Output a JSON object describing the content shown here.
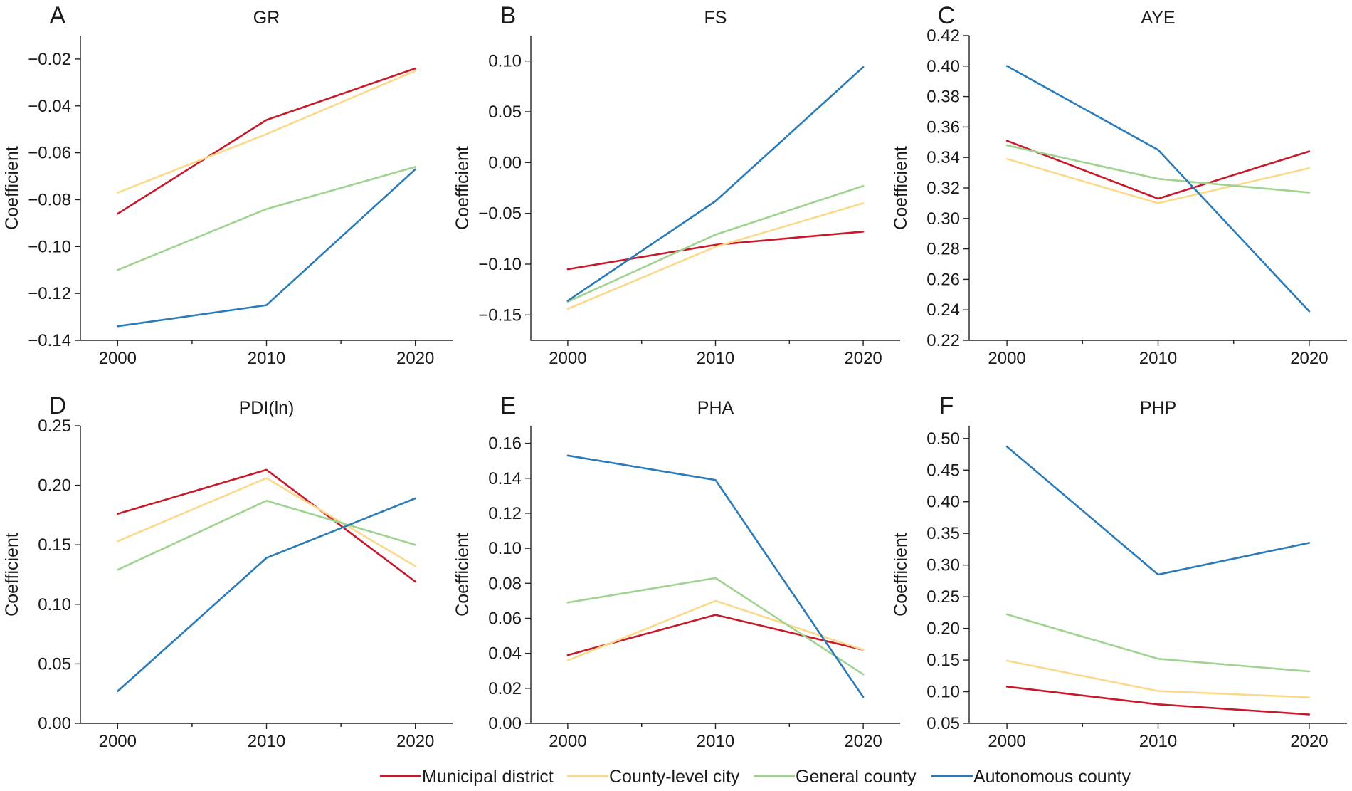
{
  "chart_data": [
    {
      "type": "line",
      "letter": "A",
      "title": "GR",
      "ylabel": "Coefficient",
      "categories": [
        "2000",
        "2010",
        "2020"
      ],
      "ylim": [
        -0.14,
        -0.01
      ],
      "yticks": [
        -0.14,
        -0.12,
        -0.1,
        -0.08,
        -0.06,
        -0.04,
        -0.02
      ],
      "ytick_labels": [
        "−0.14",
        "−0.12",
        "−0.10",
        "−0.08",
        "−0.06",
        "−0.04",
        "−0.02"
      ],
      "series": [
        {
          "name": "Municipal district",
          "values": [
            -0.086,
            -0.046,
            -0.024
          ]
        },
        {
          "name": "County-level city",
          "values": [
            -0.077,
            -0.052,
            -0.025
          ]
        },
        {
          "name": "General county",
          "values": [
            -0.11,
            -0.084,
            -0.066
          ]
        },
        {
          "name": "Autonomous county",
          "values": [
            -0.134,
            -0.125,
            -0.067
          ]
        }
      ]
    },
    {
      "type": "line",
      "letter": "B",
      "title": "FS",
      "ylabel": "Coefficient",
      "categories": [
        "2000",
        "2010",
        "2020"
      ],
      "ylim": [
        -0.175,
        0.125
      ],
      "yticks": [
        -0.15,
        -0.1,
        -0.05,
        0.0,
        0.05,
        0.1
      ],
      "ytick_labels": [
        "−0.15",
        "−0.10",
        "−0.05",
        "0.00",
        "0.05",
        "0.10"
      ],
      "series": [
        {
          "name": "Municipal district",
          "values": [
            -0.105,
            -0.081,
            -0.068
          ]
        },
        {
          "name": "County-level city",
          "values": [
            -0.144,
            -0.083,
            -0.04
          ]
        },
        {
          "name": "General county",
          "values": [
            -0.137,
            -0.071,
            -0.023
          ]
        },
        {
          "name": "Autonomous county",
          "values": [
            -0.136,
            -0.038,
            0.094
          ]
        }
      ]
    },
    {
      "type": "line",
      "letter": "C",
      "title": "AYE",
      "ylabel": "Coefficient",
      "categories": [
        "2000",
        "2010",
        "2020"
      ],
      "ylim": [
        0.22,
        0.42
      ],
      "yticks": [
        0.22,
        0.24,
        0.26,
        0.28,
        0.3,
        0.32,
        0.34,
        0.36,
        0.38,
        0.4,
        0.42
      ],
      "ytick_labels": [
        "0.22",
        "0.24",
        "0.26",
        "0.28",
        "0.30",
        "0.32",
        "0.34",
        "0.36",
        "0.38",
        "0.40",
        "0.42"
      ],
      "series": [
        {
          "name": "Municipal district",
          "values": [
            0.351,
            0.313,
            0.344
          ]
        },
        {
          "name": "County-level city",
          "values": [
            0.339,
            0.31,
            0.333
          ]
        },
        {
          "name": "General county",
          "values": [
            0.348,
            0.326,
            0.317
          ]
        },
        {
          "name": "Autonomous county",
          "values": [
            0.4,
            0.345,
            0.239
          ]
        }
      ]
    },
    {
      "type": "line",
      "letter": "D",
      "title": "PDI(ln)",
      "ylabel": "Coefficient",
      "categories": [
        "2000",
        "2010",
        "2020"
      ],
      "ylim": [
        0.0,
        0.25
      ],
      "yticks": [
        0.0,
        0.05,
        0.1,
        0.15,
        0.2,
        0.25
      ],
      "ytick_labels": [
        "0.00",
        "0.05",
        "0.10",
        "0.15",
        "0.20",
        "0.25"
      ],
      "series": [
        {
          "name": "Municipal district",
          "values": [
            0.176,
            0.213,
            0.119
          ]
        },
        {
          "name": "County-level city",
          "values": [
            0.153,
            0.206,
            0.132
          ]
        },
        {
          "name": "General county",
          "values": [
            0.129,
            0.187,
            0.15
          ]
        },
        {
          "name": "Autonomous county",
          "values": [
            0.027,
            0.139,
            0.189
          ]
        }
      ]
    },
    {
      "type": "line",
      "letter": "E",
      "title": "PHA",
      "ylabel": "Coefficient",
      "categories": [
        "2000",
        "2010",
        "2020"
      ],
      "ylim": [
        0.0,
        0.17
      ],
      "yticks": [
        0.0,
        0.02,
        0.04,
        0.06,
        0.08,
        0.1,
        0.12,
        0.14,
        0.16
      ],
      "ytick_labels": [
        "0.00",
        "0.02",
        "0.04",
        "0.06",
        "0.08",
        "0.10",
        "0.12",
        "0.14",
        "0.16"
      ],
      "series": [
        {
          "name": "Municipal district",
          "values": [
            0.039,
            0.062,
            0.042
          ]
        },
        {
          "name": "County-level city",
          "values": [
            0.036,
            0.07,
            0.042
          ]
        },
        {
          "name": "General county",
          "values": [
            0.069,
            0.083,
            0.028
          ]
        },
        {
          "name": "Autonomous county",
          "values": [
            0.153,
            0.139,
            0.015
          ]
        }
      ]
    },
    {
      "type": "line",
      "letter": "F",
      "title": "PHP",
      "ylabel": "Coefficient",
      "categories": [
        "2000",
        "2010",
        "2020"
      ],
      "ylim": [
        0.05,
        0.52
      ],
      "yticks": [
        0.05,
        0.1,
        0.15,
        0.2,
        0.25,
        0.3,
        0.35,
        0.4,
        0.45,
        0.5
      ],
      "ytick_labels": [
        "0.05",
        "0.10",
        "0.15",
        "0.20",
        "0.25",
        "0.30",
        "0.35",
        "0.40",
        "0.45",
        "0.50"
      ],
      "series": [
        {
          "name": "Municipal district",
          "values": [
            0.108,
            0.08,
            0.064
          ]
        },
        {
          "name": "County-level city",
          "values": [
            0.149,
            0.101,
            0.091
          ]
        },
        {
          "name": "General county",
          "values": [
            0.222,
            0.152,
            0.132
          ]
        },
        {
          "name": "Autonomous county",
          "values": [
            0.487,
            0.285,
            0.335
          ]
        }
      ]
    }
  ],
  "legend": {
    "placement": "bottom-center",
    "entries": [
      {
        "name": "Municipal district",
        "color": "#c8192b"
      },
      {
        "name": "County-level city",
        "color": "#fcd98a"
      },
      {
        "name": "General county",
        "color": "#9fd38f"
      },
      {
        "name": "Autonomous county",
        "color": "#2b7bb9"
      }
    ]
  }
}
